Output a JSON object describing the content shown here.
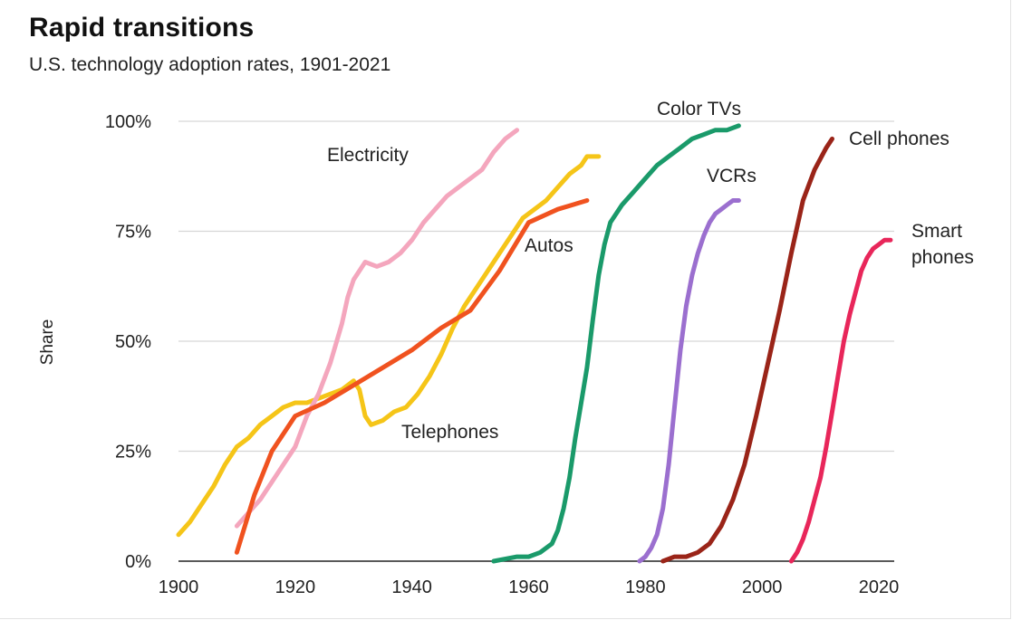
{
  "title": "Rapid transitions",
  "subtitle": "U.S. technology adoption rates, 1901-2021",
  "chart_data": {
    "type": "line",
    "title": "Rapid transitions",
    "subtitle": "U.S. technology adoption rates, 1901-2021",
    "xlabel": "",
    "ylabel": "Share",
    "xlim": [
      1900,
      2023
    ],
    "ylim": [
      0,
      100
    ],
    "xticks": [
      "1900",
      "1920",
      "1940",
      "1960",
      "1980",
      "2000",
      "2020"
    ],
    "yticks": [
      "0%",
      "25%",
      "50%",
      "75%",
      "100%"
    ],
    "grid": true,
    "legend": "none",
    "series": [
      {
        "name": "Telephones",
        "color": "#f5c518",
        "label": "Telephones",
        "x": [
          1900,
          1902,
          1904,
          1906,
          1908,
          1910,
          1912,
          1914,
          1916,
          1918,
          1920,
          1922,
          1924,
          1926,
          1928,
          1930,
          1931,
          1932,
          1933,
          1935,
          1937,
          1939,
          1941,
          1943,
          1945,
          1947,
          1949,
          1951,
          1953,
          1955,
          1957,
          1959,
          1961,
          1963,
          1965,
          1967,
          1969,
          1970,
          1972
        ],
        "y": [
          6,
          9,
          13,
          17,
          22,
          26,
          28,
          31,
          33,
          35,
          36,
          36,
          37,
          38,
          39,
          41,
          39,
          33,
          31,
          32,
          34,
          35,
          38,
          42,
          47,
          53,
          58,
          62,
          66,
          70,
          74,
          78,
          80,
          82,
          85,
          88,
          90,
          92,
          92
        ]
      },
      {
        "name": "Electricity",
        "color": "#f4a6bd",
        "label": "Electricity",
        "x": [
          1910,
          1912,
          1914,
          1916,
          1918,
          1920,
          1922,
          1924,
          1926,
          1928,
          1929,
          1930,
          1931,
          1932,
          1934,
          1936,
          1938,
          1940,
          1942,
          1944,
          1946,
          1948,
          1950,
          1952,
          1954,
          1956,
          1958
        ],
        "y": [
          8,
          11,
          14,
          18,
          22,
          26,
          33,
          38,
          45,
          54,
          60,
          64,
          66,
          68,
          67,
          68,
          70,
          73,
          77,
          80,
          83,
          85,
          87,
          89,
          93,
          96,
          98
        ]
      },
      {
        "name": "Autos",
        "color": "#f0521f",
        "label": "Autos",
        "x": [
          1910,
          1913,
          1916,
          1920,
          1925,
          1930,
          1935,
          1940,
          1945,
          1950,
          1955,
          1960,
          1965,
          1970
        ],
        "y": [
          2,
          15,
          25,
          33,
          36,
          40,
          44,
          48,
          53,
          57,
          66,
          77,
          80,
          82
        ]
      },
      {
        "name": "Color TVs",
        "color": "#1a9a6a",
        "label": "Color TVs",
        "x": [
          1954,
          1958,
          1960,
          1962,
          1964,
          1965,
          1966,
          1967,
          1968,
          1969,
          1970,
          1971,
          1972,
          1973,
          1974,
          1975,
          1976,
          1978,
          1980,
          1982,
          1984,
          1986,
          1988,
          1990,
          1992,
          1994,
          1996
        ],
        "y": [
          0,
          1,
          1,
          2,
          4,
          7,
          12,
          19,
          28,
          36,
          44,
          55,
          65,
          72,
          77,
          79,
          81,
          84,
          87,
          90,
          92,
          94,
          96,
          97,
          98,
          98,
          99
        ]
      },
      {
        "name": "VCRs",
        "color": "#9b6fcf",
        "label": "VCRs",
        "x": [
          1979,
          1980,
          1981,
          1982,
          1983,
          1984,
          1985,
          1986,
          1987,
          1988,
          1989,
          1990,
          1991,
          1992,
          1993,
          1994,
          1995,
          1996
        ],
        "y": [
          0,
          1,
          3,
          6,
          12,
          22,
          35,
          48,
          58,
          65,
          70,
          74,
          77,
          79,
          80,
          81,
          82,
          82
        ]
      },
      {
        "name": "Cell phones",
        "color": "#9a2418",
        "label": "Cell phones",
        "x": [
          1983,
          1985,
          1987,
          1989,
          1991,
          1993,
          1995,
          1997,
          1999,
          2001,
          2003,
          2005,
          2007,
          2009,
          2011,
          2012
        ],
        "y": [
          0,
          1,
          1,
          2,
          4,
          8,
          14,
          22,
          33,
          45,
          57,
          70,
          82,
          89,
          94,
          96
        ]
      },
      {
        "name": "Smart phones",
        "color": "#e8265a",
        "label": "Smart phones",
        "x": [
          2005,
          2006,
          2007,
          2008,
          2009,
          2010,
          2011,
          2012,
          2013,
          2014,
          2015,
          2016,
          2017,
          2018,
          2019,
          2020,
          2021,
          2022
        ],
        "y": [
          0,
          2,
          5,
          9,
          14,
          19,
          26,
          34,
          42,
          50,
          56,
          61,
          66,
          69,
          71,
          72,
          73,
          73
        ]
      }
    ]
  }
}
